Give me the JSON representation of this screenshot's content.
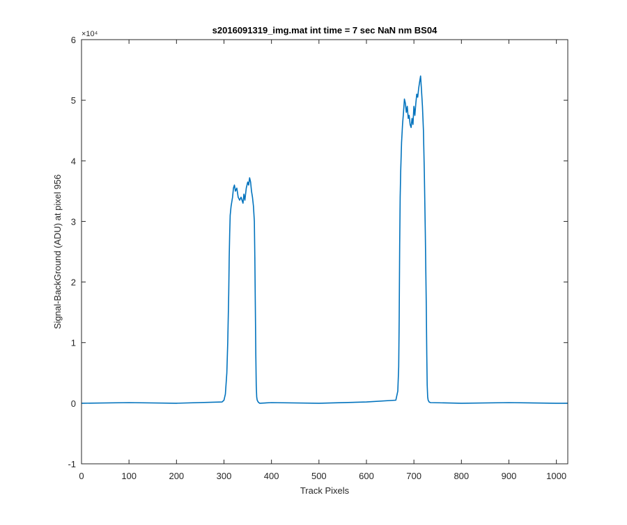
{
  "chart_data": {
    "type": "line",
    "title": "s2016091319_img.mat int time = 7 sec  NaN nm BS04",
    "xlabel": "Track Pixels",
    "ylabel": "Signal-BackGround (ADU) at pixel 956",
    "y_exponent_label": "×10⁴",
    "xlim": [
      0,
      1024
    ],
    "ylim": [
      -1,
      6
    ],
    "y_scale_factor": 10000,
    "x_ticks": [
      "0",
      "100",
      "200",
      "300",
      "400",
      "500",
      "600",
      "700",
      "800",
      "900",
      "1000"
    ],
    "y_ticks": [
      "-1",
      "0",
      "1",
      "2",
      "3",
      "4",
      "5",
      "6"
    ],
    "grid": false,
    "line_color": "#0072BD",
    "series": [
      {
        "x": [
          0,
          100,
          200,
          296,
          300,
          303,
          306,
          308,
          310,
          311,
          312,
          313,
          315,
          318,
          320,
          322,
          324,
          327,
          330,
          333,
          336,
          340,
          342,
          344,
          347,
          350,
          352,
          354,
          356,
          358,
          360,
          362,
          364,
          365,
          366,
          367,
          368,
          369,
          370,
          372,
          375,
          400,
          500,
          600,
          662,
          666,
          668,
          669,
          670,
          671,
          672,
          674,
          676,
          678,
          680,
          682,
          684,
          686,
          688,
          690,
          692,
          694,
          696,
          698,
          700,
          702,
          704,
          706,
          708,
          710,
          712,
          714,
          716,
          718,
          720,
          722,
          724,
          726,
          727,
          728,
          729,
          730,
          732,
          735,
          800,
          900,
          1000,
          1024
        ],
        "y": [
          0.0,
          0.01,
          0.0,
          0.02,
          0.05,
          0.15,
          0.5,
          1.0,
          1.8,
          2.4,
          2.8,
          3.1,
          3.25,
          3.4,
          3.55,
          3.6,
          3.5,
          3.55,
          3.4,
          3.35,
          3.4,
          3.3,
          3.45,
          3.35,
          3.55,
          3.65,
          3.6,
          3.72,
          3.65,
          3.5,
          3.4,
          3.25,
          3.0,
          2.4,
          1.6,
          0.8,
          0.3,
          0.1,
          0.05,
          0.02,
          0.0,
          0.01,
          0.0,
          0.02,
          0.05,
          0.2,
          0.6,
          1.4,
          2.6,
          3.4,
          3.8,
          4.3,
          4.6,
          4.8,
          5.02,
          4.95,
          4.8,
          4.9,
          4.7,
          4.75,
          4.6,
          4.55,
          4.7,
          4.6,
          4.9,
          4.75,
          4.95,
          5.1,
          5.05,
          5.2,
          5.3,
          5.4,
          5.15,
          4.9,
          4.5,
          3.8,
          2.8,
          1.6,
          0.8,
          0.3,
          0.1,
          0.05,
          0.02,
          0.01,
          0.0,
          0.01,
          0.0,
          0.0
        ]
      }
    ]
  }
}
